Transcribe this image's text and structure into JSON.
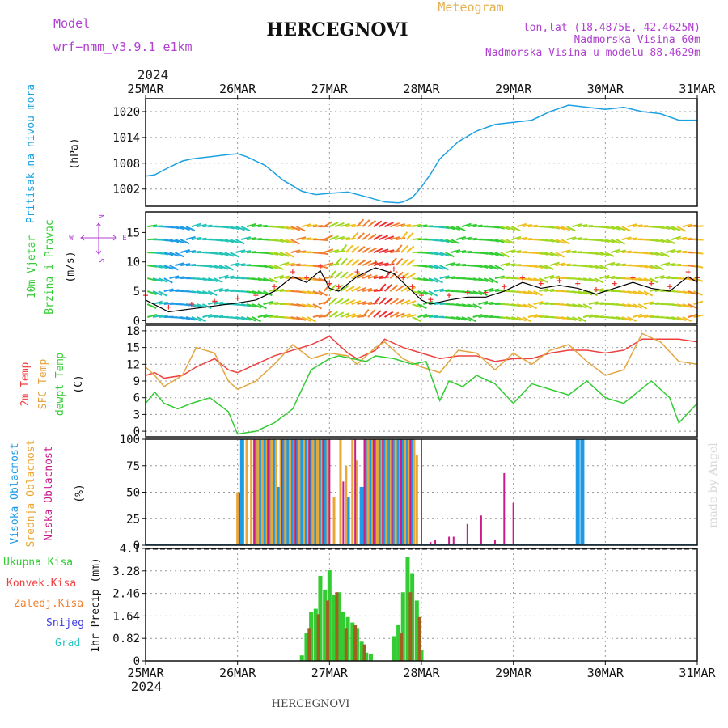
{
  "header": {
    "model_label": "Model",
    "model_name": "wrf−nmm_v3.9.1 e1km",
    "station": "HERCEGNOVI",
    "product": "Meteogram",
    "lonlat": "lon,lat (18.4875E, 42.4625N)",
    "elevation": "Nadmorska Visina 60m",
    "model_elevation": "Nadmorska Visina u modelu 88.4629m"
  },
  "colors": {
    "pressure": "#1ba1e2",
    "temp2m": "#ee4040",
    "sfc": "#e3a540",
    "dewpt": "#33cc33",
    "high_cloud": "#1e9be6",
    "mid_cloud": "#e8a838",
    "low_cloud": "#cc1a8a",
    "precip_total": "#33cc33",
    "precip_conv": "#ee4040",
    "precip_frozen": "#f08030",
    "snow": "#4040dd",
    "grad": "#2ec4c4",
    "magenta_text": "#b040d0",
    "orange_text": "#e3b050",
    "wind_speed": "#000000"
  },
  "time_axis": {
    "year": "2024",
    "labels": [
      "25MAR",
      "26MAR",
      "27MAR",
      "28MAR",
      "29MAR",
      "30MAR",
      "31MAR"
    ]
  },
  "footer": {
    "station": "HERCEGNOVI",
    "watermark": "made by Angel"
  },
  "chart_data": [
    {
      "type": "line",
      "panel": "pressure",
      "ylabel_1": "Pritisak na nivou mora",
      "ylabel_2": "(hPa)",
      "yticks": [
        1002,
        1008,
        1014,
        1020
      ],
      "ylim": [
        998,
        1023
      ],
      "grid": true,
      "series": [
        {
          "x": [
            0,
            0.1,
            0.25,
            0.4,
            0.5,
            0.7,
            0.9,
            1.0,
            1.1,
            1.3,
            1.5,
            1.7,
            1.85,
            2.0,
            2.2,
            2.4,
            2.6,
            2.75,
            2.8,
            2.9,
            3.0,
            3.1,
            3.2,
            3.4,
            3.6,
            3.8,
            4.0,
            4.2,
            4.4,
            4.6,
            4.8,
            5.0,
            5.2,
            5.4,
            5.6,
            5.8,
            6.0
          ],
          "y": [
            1005.0,
            1005.3,
            1007.0,
            1008.5,
            1009.0,
            1009.5,
            1010.0,
            1010.2,
            1009.5,
            1007.5,
            1004.0,
            1001.5,
            1000.7,
            1001.0,
            1001.3,
            1000.2,
            999.0,
            998.8,
            999.0,
            1000.0,
            1002.5,
            1005.5,
            1009.0,
            1013.0,
            1015.5,
            1017.0,
            1017.5,
            1018.0,
            1020.0,
            1021.5,
            1021.0,
            1020.5,
            1021.0,
            1020.0,
            1019.5,
            1018.0,
            1018.0
          ]
        }
      ]
    },
    {
      "type": "line",
      "panel": "wind",
      "ylabel_1": "10m Vjetar",
      "ylabel_2": "Brzina i Pravac",
      "ylabel_3": "(m/s)",
      "compass": {
        "north": "N",
        "south": "S",
        "west": "W",
        "east": "E"
      },
      "yticks": [
        0,
        5,
        10,
        15
      ],
      "ylim": [
        -0.5,
        18.5
      ],
      "grid": false,
      "series": [
        {
          "name": "speed",
          "x": [
            0,
            0.25,
            0.5,
            0.75,
            1.0,
            1.2,
            1.4,
            1.6,
            1.75,
            1.9,
            2.0,
            2.1,
            2.3,
            2.5,
            2.7,
            2.8,
            2.9,
            3.0,
            3.1,
            3.3,
            3.5,
            3.7,
            3.9,
            4.1,
            4.3,
            4.5,
            4.7,
            4.9,
            5.1,
            5.3,
            5.5,
            5.7,
            5.9,
            6.0
          ],
          "y": [
            3.5,
            1.5,
            2.0,
            2.5,
            3.0,
            3.5,
            5.0,
            7.5,
            6.5,
            8.5,
            5.5,
            5.0,
            7.5,
            9.0,
            8.0,
            6.5,
            5.0,
            3.5,
            2.8,
            3.5,
            4.0,
            4.0,
            5.0,
            6.5,
            5.5,
            6.0,
            5.5,
            4.5,
            5.5,
            6.5,
            5.5,
            5.0,
            7.5,
            6.5
          ]
        }
      ]
    },
    {
      "type": "line",
      "panel": "temperature",
      "ylabel_1": "2m Temp",
      "ylabel_2": "SFC Temp",
      "ylabel_3": "dewpt Temp",
      "ylabel_4": "(C)",
      "yticks": [
        0,
        3,
        6,
        9,
        12,
        15,
        18
      ],
      "ylim": [
        -1,
        19
      ],
      "grid": true,
      "series": [
        {
          "name": "2m Temp",
          "x": [
            0,
            0.1,
            0.2,
            0.4,
            0.55,
            0.75,
            0.9,
            1.0,
            1.2,
            1.4,
            1.6,
            1.8,
            2.0,
            2.2,
            2.3,
            2.5,
            2.6,
            2.8,
            3.0,
            3.2,
            3.4,
            3.6,
            3.8,
            4.0,
            4.2,
            4.4,
            4.6,
            4.8,
            5.0,
            5.2,
            5.4,
            5.6,
            5.8,
            6.0
          ],
          "y": [
            10.0,
            10.5,
            9.5,
            10.0,
            11.5,
            13.0,
            11.0,
            10.5,
            12.0,
            13.5,
            14.5,
            15.5,
            17.0,
            14.0,
            13.0,
            14.5,
            16.5,
            15.0,
            14.0,
            13.0,
            13.5,
            13.5,
            12.5,
            13.0,
            13.0,
            14.0,
            14.5,
            14.5,
            14.0,
            14.5,
            16.5,
            16.5,
            16.5,
            16.0
          ]
        },
        {
          "name": "SFC Temp",
          "x": [
            0,
            0.1,
            0.2,
            0.4,
            0.55,
            0.75,
            0.9,
            1.0,
            1.2,
            1.4,
            1.6,
            1.8,
            2.0,
            2.2,
            2.3,
            2.5,
            2.6,
            2.8,
            3.0,
            3.2,
            3.4,
            3.6,
            3.8,
            4.0,
            4.2,
            4.4,
            4.6,
            4.8,
            5.0,
            5.2,
            5.4,
            5.6,
            5.8,
            6.0
          ],
          "y": [
            11.5,
            10.0,
            8.0,
            10.0,
            15.0,
            14.0,
            9.0,
            7.5,
            9.0,
            12.0,
            15.5,
            13.0,
            14.0,
            13.5,
            12.0,
            15.0,
            16.0,
            13.0,
            11.5,
            10.5,
            14.5,
            14.0,
            11.0,
            14.0,
            12.0,
            14.5,
            15.5,
            12.5,
            10.0,
            11.0,
            17.5,
            16.0,
            12.5,
            12.0
          ]
        },
        {
          "name": "dewpt Temp",
          "x": [
            0,
            0.1,
            0.2,
            0.35,
            0.5,
            0.7,
            0.9,
            1.0,
            1.2,
            1.4,
            1.6,
            1.8,
            2.0,
            2.1,
            2.25,
            2.4,
            2.5,
            2.7,
            2.9,
            3.05,
            3.2,
            3.3,
            3.45,
            3.6,
            3.8,
            4.0,
            4.2,
            4.4,
            4.6,
            4.8,
            5.0,
            5.2,
            5.35,
            5.5,
            5.7,
            5.8,
            6.0
          ],
          "y": [
            5.0,
            7.0,
            5.0,
            4.0,
            5.0,
            6.0,
            3.5,
            -0.5,
            0.0,
            1.5,
            4.0,
            11.0,
            13.0,
            13.5,
            13.0,
            12.5,
            13.5,
            13.0,
            12.0,
            12.5,
            5.5,
            9.0,
            8.0,
            10.0,
            8.5,
            5.0,
            8.5,
            7.5,
            6.5,
            9.0,
            6.0,
            5.0,
            7.0,
            9.0,
            6.0,
            1.5,
            5.0
          ]
        }
      ]
    },
    {
      "type": "bar",
      "panel": "clouds",
      "ylabel_1": "Visoka Oblacnost",
      "ylabel_2": "Srednja Oblacnost",
      "ylabel_3": "Niska Oblacnost",
      "ylabel_4": "(%)",
      "yticks": [
        0,
        25,
        50,
        75,
        100
      ],
      "ylim": [
        0,
        100
      ],
      "grid": true,
      "series": [
        {
          "name": "Visoka Oblacnost",
          "x": [
            1.05,
            1.2,
            1.25,
            1.3,
            1.35,
            1.4,
            1.45,
            1.5,
            1.55,
            1.6,
            1.65,
            1.7,
            1.75,
            1.8,
            1.85,
            1.9,
            1.95,
            2.2,
            2.35,
            2.4,
            2.45,
            2.5,
            2.55,
            2.6,
            2.65,
            2.7,
            2.75,
            2.8,
            2.85,
            2.9,
            4.7,
            4.75
          ],
          "y": [
            100,
            100,
            100,
            100,
            100,
            100,
            55,
            100,
            100,
            100,
            100,
            100,
            100,
            100,
            100,
            100,
            100,
            45,
            55,
            100,
            100,
            100,
            100,
            100,
            100,
            100,
            100,
            100,
            100,
            100,
            100,
            100
          ]
        },
        {
          "name": "Srednja Oblacnost",
          "x": [
            1.0,
            1.1,
            1.15,
            1.22,
            1.27,
            1.32,
            1.37,
            1.42,
            1.47,
            1.52,
            1.57,
            1.62,
            1.67,
            1.72,
            1.77,
            1.82,
            1.87,
            1.92,
            1.98,
            2.05,
            2.12,
            2.18,
            2.25,
            2.3,
            2.42,
            2.47,
            2.52,
            2.57,
            2.62,
            2.67,
            2.72,
            2.77,
            2.82,
            2.87,
            2.92,
            2.95
          ],
          "y": [
            50,
            100,
            100,
            100,
            100,
            100,
            100,
            100,
            100,
            100,
            100,
            100,
            100,
            100,
            100,
            100,
            100,
            100,
            100,
            45,
            100,
            75,
            100,
            80,
            100,
            100,
            100,
            100,
            100,
            100,
            100,
            100,
            100,
            100,
            100,
            85
          ]
        },
        {
          "name": "Niska Oblacnost",
          "x": [
            1.02,
            1.18,
            1.33,
            1.48,
            1.63,
            1.78,
            1.93,
            2.0,
            2.15,
            2.28,
            2.38,
            2.48,
            2.58,
            2.68,
            2.78,
            2.88,
            3.0,
            3.1,
            3.15,
            3.3,
            3.35,
            3.5,
            3.65,
            3.8,
            3.9,
            4.0
          ],
          "y": [
            50,
            100,
            100,
            100,
            100,
            100,
            100,
            100,
            60,
            100,
            100,
            100,
            100,
            100,
            100,
            100,
            100,
            3,
            5,
            8,
            8,
            20,
            28,
            5,
            68,
            40
          ]
        }
      ]
    },
    {
      "type": "bar",
      "panel": "precipitation",
      "ylabel": "1hr Precip (mm)",
      "legend": [
        "Ukupna Kisa",
        "Konvek.Kisa",
        "Zaledj.Kisa",
        "Snijeg",
        "Grad"
      ],
      "yticks": [
        "0",
        "0.82",
        "1.64",
        "2.46",
        "3.28",
        "4.1"
      ],
      "ylim": [
        0,
        4.1
      ],
      "grid": true,
      "series": [
        {
          "name": "Ukupna Kisa",
          "x": [
            1.7,
            1.75,
            1.8,
            1.85,
            1.9,
            1.95,
            2.0,
            2.05,
            2.1,
            2.15,
            2.2,
            2.25,
            2.3,
            2.35,
            2.4,
            2.45,
            2.7,
            2.75,
            2.8,
            2.85,
            2.9,
            2.95,
            3.0
          ],
          "y": [
            0.2,
            1.0,
            1.8,
            1.9,
            3.1,
            2.6,
            3.3,
            2.4,
            2.5,
            1.8,
            1.6,
            1.4,
            1.2,
            0.7,
            0.3,
            0.25,
            0.9,
            1.3,
            2.5,
            3.8,
            3.2,
            2.2,
            0.4
          ]
        },
        {
          "name": "Konvek.Kisa",
          "x": [
            1.78,
            1.88,
            1.98,
            2.08,
            2.18,
            2.28,
            2.38,
            2.78,
            2.88,
            2.98
          ],
          "y": [
            1.2,
            1.7,
            2.2,
            2.5,
            1.2,
            1.3,
            0.6,
            1.0,
            2.5,
            1.6
          ]
        }
      ]
    }
  ]
}
